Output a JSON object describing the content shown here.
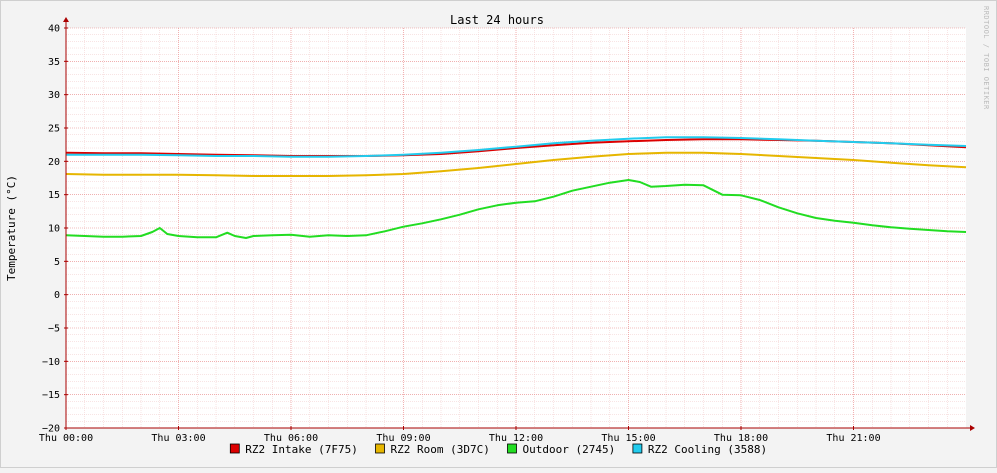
{
  "chart_data": {
    "type": "line",
    "title": "Last 24 hours",
    "ylabel": "Temperature (°C)",
    "xlabel": "",
    "watermark": "RRDTOOL / TOBI OETIKER",
    "ylim": [
      -20,
      40
    ],
    "xlim": [
      0,
      24
    ],
    "yticks": [
      {
        "v": 40,
        "label": "40"
      },
      {
        "v": 35,
        "label": "35"
      },
      {
        "v": 30,
        "label": "30"
      },
      {
        "v": 25,
        "label": "25"
      },
      {
        "v": 20,
        "label": "20"
      },
      {
        "v": 15,
        "label": "15"
      },
      {
        "v": 10,
        "label": "10"
      },
      {
        "v": 5,
        "label": "5"
      },
      {
        "v": 0,
        "label": "0"
      },
      {
        "v": -5,
        "label": "−5"
      },
      {
        "v": -10,
        "label": "−10"
      },
      {
        "v": -15,
        "label": "−15"
      },
      {
        "v": -20,
        "label": "−20"
      }
    ],
    "xticks": [
      {
        "v": 0,
        "label": "Thu 00:00"
      },
      {
        "v": 3,
        "label": "Thu 03:00"
      },
      {
        "v": 6,
        "label": "Thu 06:00"
      },
      {
        "v": 9,
        "label": "Thu 09:00"
      },
      {
        "v": 12,
        "label": "Thu 12:00"
      },
      {
        "v": 15,
        "label": "Thu 15:00"
      },
      {
        "v": 18,
        "label": "Thu 18:00"
      },
      {
        "v": 21,
        "label": "Thu 21:00"
      }
    ],
    "grid": true,
    "legend_position": "bottom",
    "background": "#ffffff",
    "canvas_background": "#f3f3f3",
    "grid_color": "#ffaaaa",
    "axis_color": "#aa0000",
    "series": [
      {
        "name": "RZ2 Intake (7F75)",
        "color": "#dd0000",
        "x": [
          0,
          1,
          2,
          3,
          4,
          5,
          6,
          7,
          8,
          9,
          10,
          11,
          12,
          13,
          14,
          15,
          16,
          17,
          18,
          19,
          20,
          21,
          22,
          23,
          24
        ],
        "y": [
          21.3,
          21.2,
          21.2,
          21.1,
          21.0,
          20.9,
          20.8,
          20.8,
          20.8,
          20.9,
          21.1,
          21.5,
          22.0,
          22.4,
          22.8,
          23.0,
          23.2,
          23.3,
          23.3,
          23.2,
          23.1,
          22.9,
          22.7,
          22.4,
          22.1
        ]
      },
      {
        "name": "RZ2 Room (3D7C)",
        "color": "#e6b600",
        "x": [
          0,
          1,
          2,
          3,
          4,
          5,
          6,
          7,
          8,
          9,
          10,
          11,
          12,
          13,
          14,
          15,
          16,
          17,
          18,
          19,
          20,
          21,
          22,
          23,
          24
        ],
        "y": [
          18.1,
          18.0,
          18.0,
          18.0,
          17.9,
          17.8,
          17.8,
          17.8,
          17.9,
          18.1,
          18.5,
          19.0,
          19.6,
          20.2,
          20.7,
          21.1,
          21.3,
          21.3,
          21.1,
          20.8,
          20.5,
          20.2,
          19.8,
          19.4,
          19.1
        ]
      },
      {
        "name": "Outdoor (2745)",
        "color": "#22dd22",
        "x": [
          0,
          0.5,
          1,
          1.5,
          2,
          2.3,
          2.5,
          2.7,
          3,
          3.5,
          4,
          4.3,
          4.5,
          4.8,
          5,
          5.5,
          6,
          6.5,
          7,
          7.5,
          8,
          8.5,
          9,
          9.5,
          10,
          10.5,
          11,
          11.5,
          12,
          12.5,
          13,
          13.5,
          14,
          14.5,
          15,
          15.3,
          15.6,
          16,
          16.5,
          17,
          17.5,
          18,
          18.5,
          19,
          19.5,
          20,
          20.5,
          21,
          21.5,
          22,
          22.5,
          23,
          23.5,
          24
        ],
        "y": [
          8.9,
          8.8,
          8.7,
          8.7,
          8.8,
          9.4,
          10.0,
          9.1,
          8.8,
          8.6,
          8.6,
          9.3,
          8.8,
          8.5,
          8.8,
          8.9,
          9.0,
          8.7,
          8.9,
          8.8,
          8.9,
          9.5,
          10.2,
          10.7,
          11.3,
          12.0,
          12.8,
          13.4,
          13.8,
          14.0,
          14.7,
          15.6,
          16.2,
          16.8,
          17.2,
          16.9,
          16.2,
          16.3,
          16.5,
          16.4,
          15.0,
          14.9,
          14.2,
          13.1,
          12.2,
          11.5,
          11.1,
          10.8,
          10.4,
          10.1,
          9.9,
          9.7,
          9.5,
          9.4
        ]
      },
      {
        "name": "RZ2 Cooling (3588)",
        "color": "#22ccee",
        "x": [
          0,
          1,
          2,
          3,
          4,
          5,
          6,
          7,
          8,
          9,
          10,
          11,
          12,
          13,
          14,
          15,
          16,
          17,
          18,
          19,
          20,
          21,
          22,
          23,
          24
        ],
        "y": [
          21.0,
          21.0,
          21.0,
          20.9,
          20.8,
          20.8,
          20.7,
          20.7,
          20.8,
          21.0,
          21.3,
          21.7,
          22.2,
          22.7,
          23.1,
          23.4,
          23.6,
          23.6,
          23.5,
          23.3,
          23.1,
          22.9,
          22.7,
          22.5,
          22.3
        ]
      }
    ]
  }
}
